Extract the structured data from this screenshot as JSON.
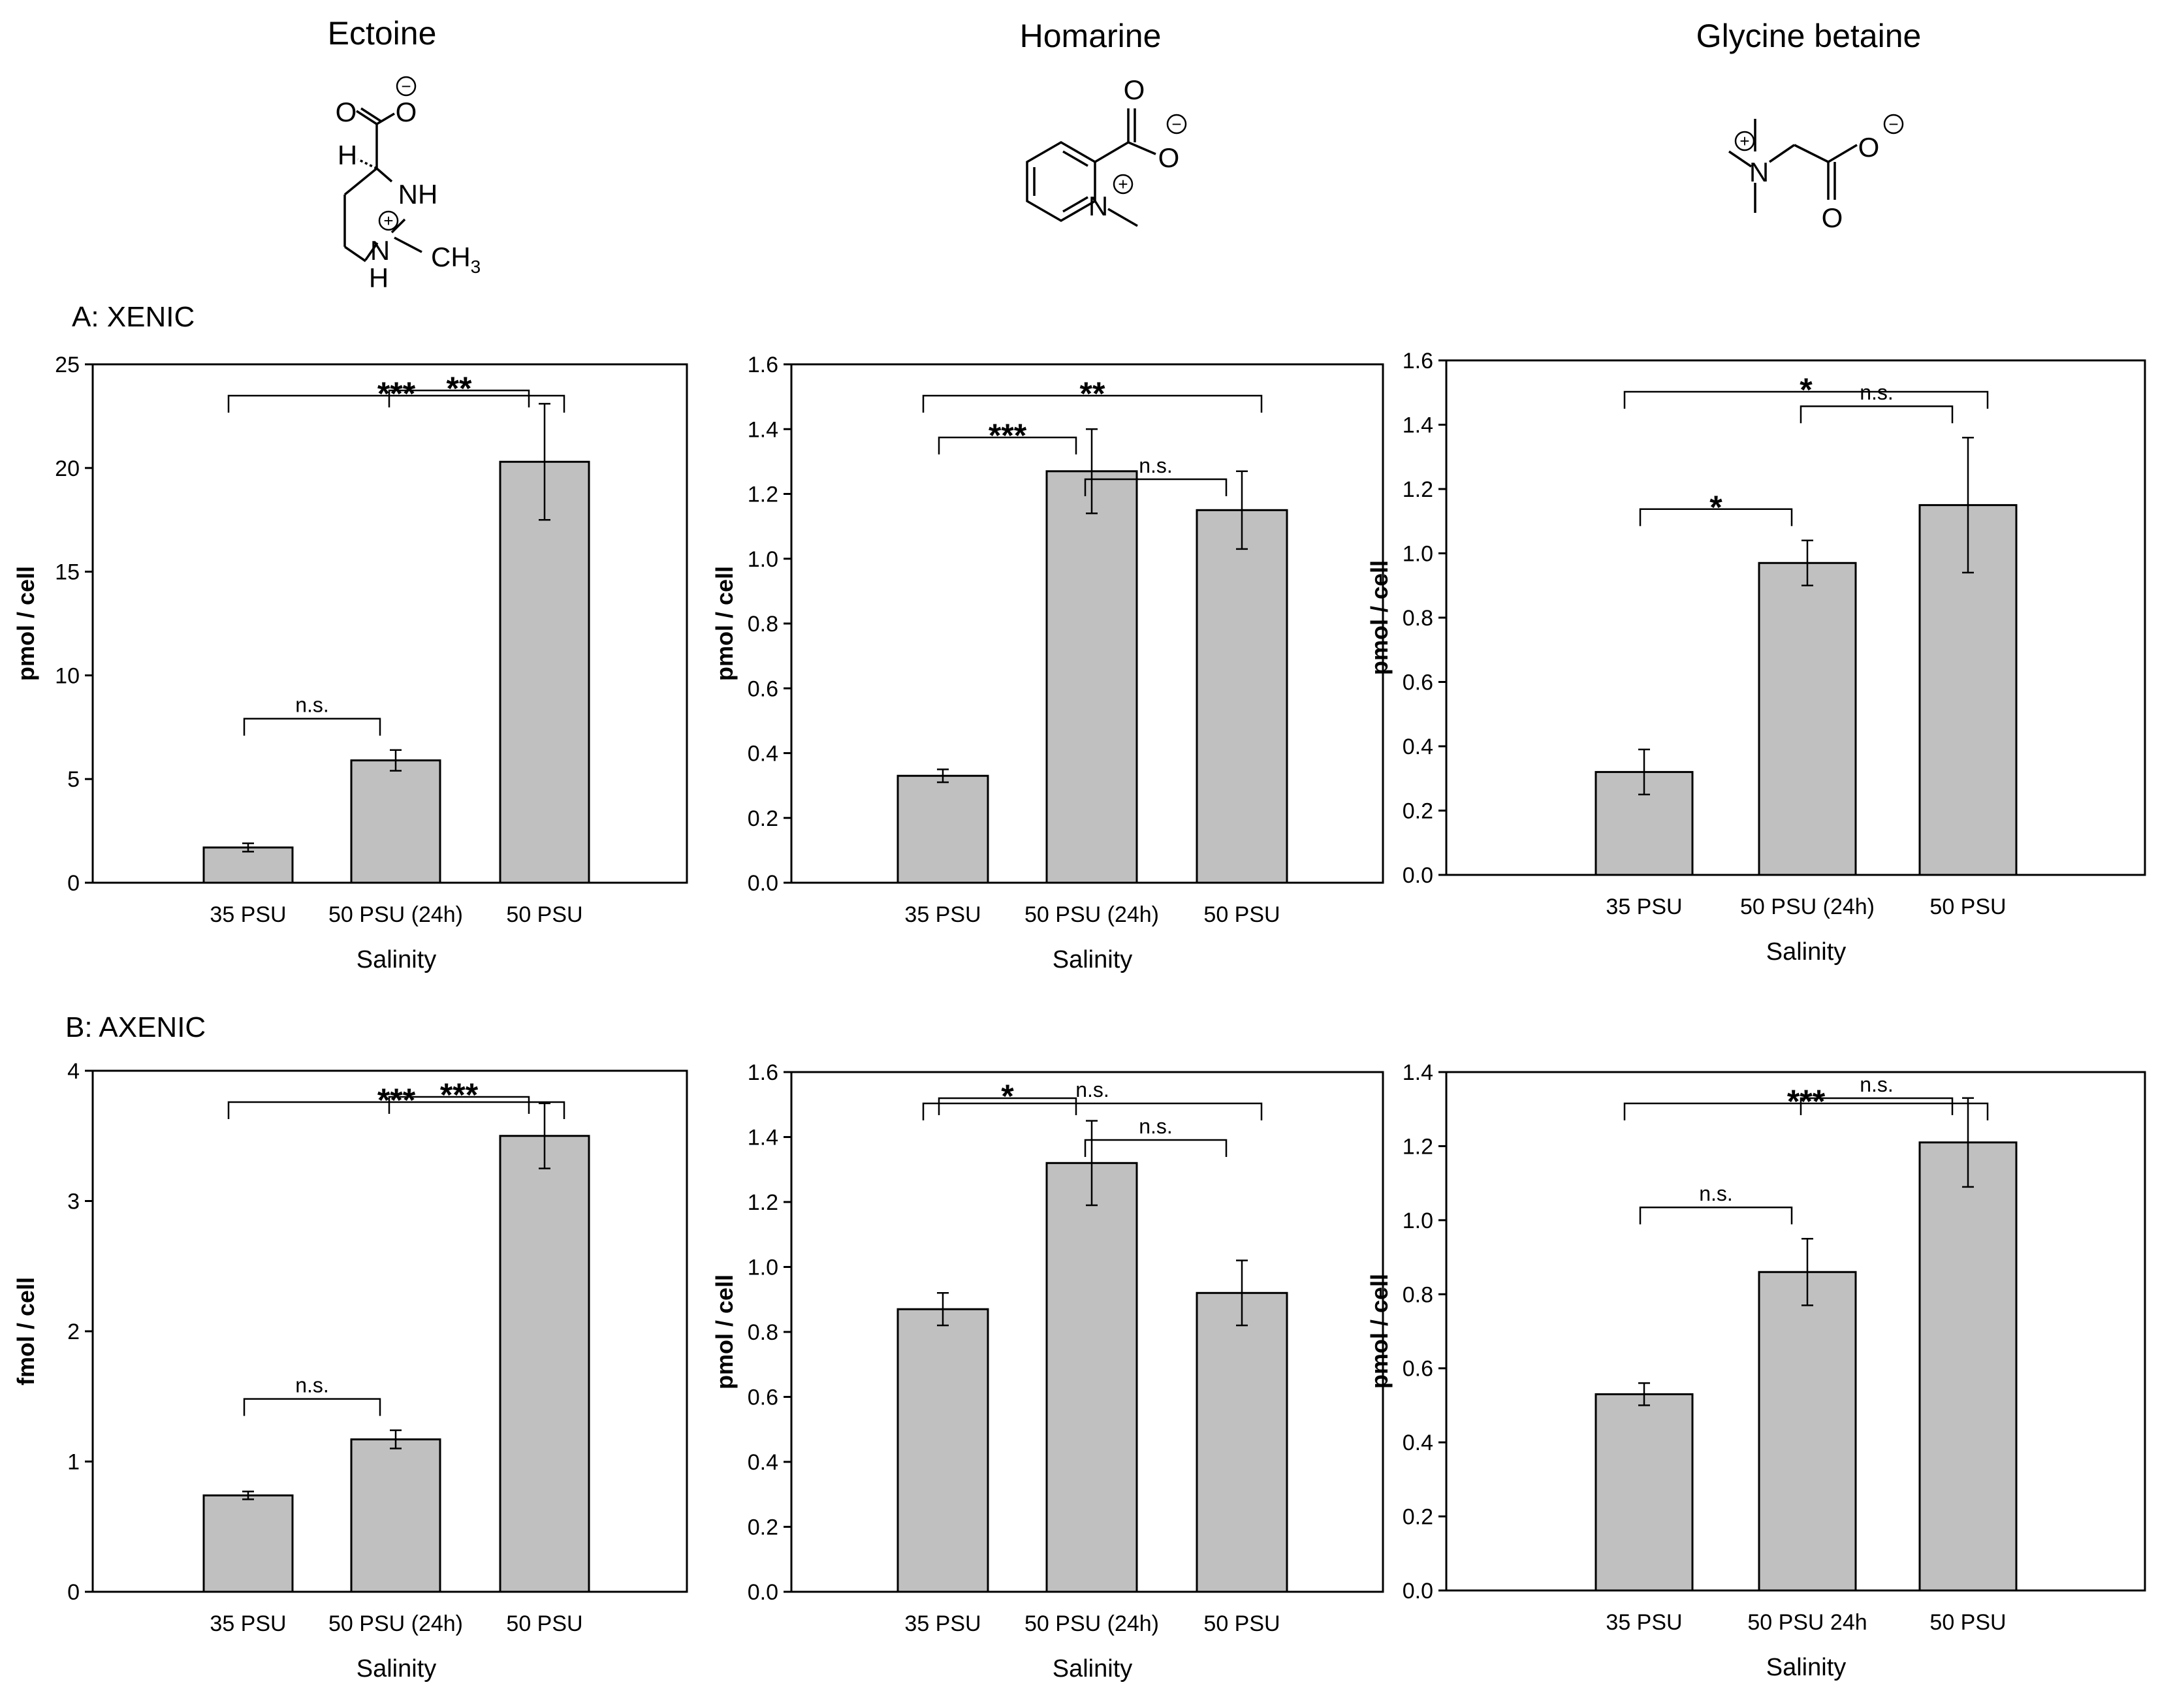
{
  "compounds": [
    {
      "name": "Ectoine",
      "structure": "ectoine",
      "atoms": {
        "o1": "O",
        "o2": "O",
        "h": "H",
        "nh": "NH",
        "n": "N",
        "h_bottom": "H",
        "ch3": "CH",
        "sub": "3"
      }
    },
    {
      "name": "Homarine",
      "structure": "homarine",
      "atoms": {
        "o1": "O",
        "o2": "O",
        "n": "N"
      }
    },
    {
      "name": "Glycine betaine",
      "structure": "glycine-betaine",
      "atoms": {
        "n": "N",
        "o1": "O",
        "o2": "O"
      }
    }
  ],
  "rows": [
    {
      "label": "A:  XENIC"
    },
    {
      "label": "B:  AXENIC"
    }
  ],
  "colors": {
    "bar_fill": "#c0c0c0",
    "stroke": "#000000"
  },
  "chart_data": [
    {
      "id": "A-ectoine",
      "type": "bar",
      "row": 0,
      "col": 0,
      "categories": [
        "35 PSU",
        "50 PSU (24h)",
        "50 PSU"
      ],
      "values": [
        1.7,
        5.9,
        20.3
      ],
      "errors": [
        0.2,
        0.5,
        2.8
      ],
      "xlabel": "Salinity",
      "ylabel": "pmol / cell",
      "ylim": [
        0,
        25
      ],
      "yticks": [
        "0",
        "5",
        "10",
        "15",
        "20",
        "25"
      ],
      "significance": [
        {
          "from": 0,
          "to": 2,
          "label": "***"
        },
        {
          "from": 1,
          "to": 2,
          "label": "**"
        },
        {
          "from": 0,
          "to": 1,
          "label": "n.s."
        }
      ]
    },
    {
      "id": "A-homarine",
      "type": "bar",
      "row": 0,
      "col": 1,
      "categories": [
        "35 PSU",
        "50 PSU (24h)",
        "50 PSU"
      ],
      "values": [
        0.33,
        1.27,
        1.15
      ],
      "errors": [
        0.02,
        0.13,
        0.12
      ],
      "xlabel": "Salinity",
      "ylabel": "pmol / cell",
      "ylim": [
        0,
        1.6
      ],
      "yticks": [
        "0.0",
        "0.2",
        "0.4",
        "0.6",
        "0.8",
        "1.0",
        "1.2",
        "1.4",
        "1.6"
      ],
      "significance": [
        {
          "from": 0,
          "to": 2,
          "label": "**"
        },
        {
          "from": 0,
          "to": 1,
          "label": "***"
        },
        {
          "from": 1,
          "to": 2,
          "label": "n.s."
        }
      ]
    },
    {
      "id": "A-glycine-betaine",
      "type": "bar",
      "row": 0,
      "col": 2,
      "categories": [
        "35 PSU",
        "50 PSU (24h)",
        "50 PSU"
      ],
      "values": [
        0.32,
        0.97,
        1.15
      ],
      "errors": [
        0.07,
        0.07,
        0.21
      ],
      "xlabel": "Salinity",
      "ylabel": "pmol / cell",
      "ylim": [
        0,
        1.6
      ],
      "yticks": [
        "0.0",
        "0.2",
        "0.4",
        "0.6",
        "0.8",
        "1.0",
        "1.2",
        "1.4",
        "1.6"
      ],
      "significance": [
        {
          "from": 0,
          "to": 2,
          "label": "*"
        },
        {
          "from": 0,
          "to": 1,
          "label": "*"
        },
        {
          "from": 1,
          "to": 2,
          "label": "n.s."
        }
      ]
    },
    {
      "id": "B-ectoine",
      "type": "bar",
      "row": 1,
      "col": 0,
      "categories": [
        "35 PSU",
        "50 PSU (24h)",
        "50 PSU"
      ],
      "values": [
        0.74,
        1.17,
        3.5
      ],
      "errors": [
        0.03,
        0.07,
        0.25
      ],
      "xlabel": "Salinity",
      "ylabel": "fmol / cell",
      "ylim": [
        0,
        4
      ],
      "yticks": [
        "0",
        "1",
        "2",
        "3",
        "4"
      ],
      "significance": [
        {
          "from": 0,
          "to": 2,
          "label": "***"
        },
        {
          "from": 1,
          "to": 2,
          "label": "***"
        },
        {
          "from": 0,
          "to": 1,
          "label": "n.s."
        }
      ]
    },
    {
      "id": "B-homarine",
      "type": "bar",
      "row": 1,
      "col": 1,
      "categories": [
        "35 PSU",
        "50 PSU (24h)",
        "50 PSU"
      ],
      "values": [
        0.87,
        1.32,
        0.92
      ],
      "errors": [
        0.05,
        0.13,
        0.1
      ],
      "xlabel": "Salinity",
      "ylabel": "pmol / cell",
      "ylim": [
        0,
        1.6
      ],
      "yticks": [
        "0.0",
        "0.2",
        "0.4",
        "0.6",
        "0.8",
        "1.0",
        "1.2",
        "1.4",
        "1.6"
      ],
      "significance": [
        {
          "from": 0,
          "to": 2,
          "label": "n.s."
        },
        {
          "from": 0,
          "to": 1,
          "label": "*"
        },
        {
          "from": 1,
          "to": 2,
          "label": "n.s."
        }
      ]
    },
    {
      "id": "B-glycine-betaine",
      "type": "bar",
      "row": 1,
      "col": 2,
      "categories": [
        "35 PSU",
        "50 PSU 24h",
        "50 PSU"
      ],
      "values": [
        0.53,
        0.86,
        1.21
      ],
      "errors": [
        0.03,
        0.09,
        0.12
      ],
      "xlabel": "Salinity",
      "ylabel": "pmol / cell",
      "ylim": [
        0,
        1.4
      ],
      "yticks": [
        "0.0",
        "0.2",
        "0.4",
        "0.6",
        "0.8",
        "1.0",
        "1.2",
        "1.4"
      ],
      "significance": [
        {
          "from": 0,
          "to": 2,
          "label": "***"
        },
        {
          "from": 1,
          "to": 2,
          "label": "n.s."
        },
        {
          "from": 0,
          "to": 1,
          "label": "n.s."
        }
      ]
    }
  ]
}
